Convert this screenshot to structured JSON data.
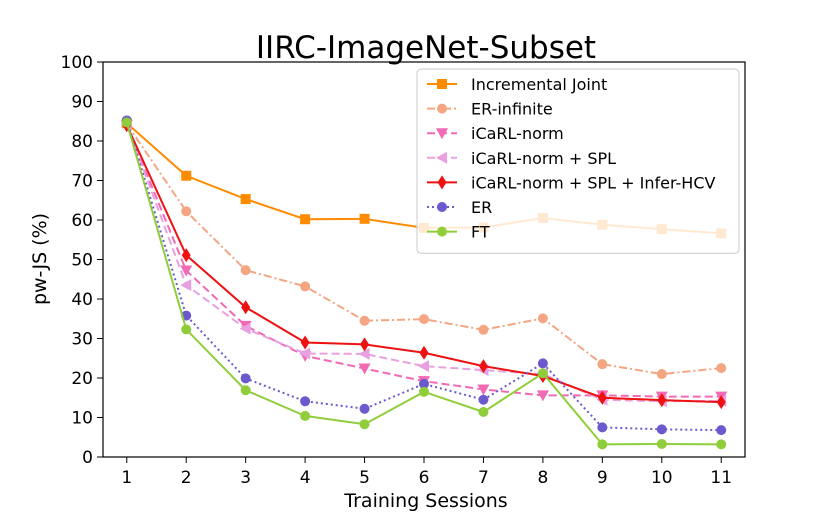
{
  "chart_data": {
    "type": "line",
    "title": "IIRC-ImageNet-Subset",
    "xlabel": "Training Sessions",
    "ylabel": "pw-JS (%)",
    "x": [
      1,
      2,
      3,
      4,
      5,
      6,
      7,
      8,
      9,
      10,
      11
    ],
    "ylim": [
      0,
      100
    ],
    "yticks": [
      0,
      10,
      20,
      30,
      40,
      50,
      60,
      70,
      80,
      90,
      100
    ],
    "grid": false,
    "legend_position": "top-right",
    "series": [
      {
        "name": "Incremental Joint",
        "color": "#ff8c00",
        "dash": "solid",
        "marker": "square",
        "values": [
          84.5,
          71.2,
          65.3,
          60.2,
          60.3,
          58.0,
          58.1,
          60.5,
          58.8,
          57.7,
          56.6
        ]
      },
      {
        "name": "ER-infinite",
        "color": "#f4a582",
        "dash": "dashdot",
        "marker": "circle",
        "values": [
          84.3,
          62.2,
          47.3,
          43.2,
          34.5,
          34.9,
          32.2,
          35.1,
          23.5,
          21.0,
          22.5
        ]
      },
      {
        "name": "iCaRL-norm",
        "color": "#f26ab5",
        "dash": "dashed",
        "marker": "triangle-down",
        "values": [
          84.0,
          47.2,
          33.2,
          25.6,
          22.4,
          19.2,
          17.1,
          15.6,
          15.6,
          15.3,
          15.3
        ]
      },
      {
        "name": "iCaRL-norm + SPL",
        "color": "#e8a0e0",
        "dash": "dashed",
        "marker": "triangle-left",
        "values": [
          84.2,
          43.5,
          32.5,
          26.2,
          26.1,
          23.0,
          22.0,
          21.0,
          14.5,
          14.1,
          14.2
        ]
      },
      {
        "name": "iCaRL-norm + SPL + Infer-HCV",
        "color": "#ee1111",
        "dash": "solid",
        "marker": "diamond",
        "values": [
          84.0,
          51.1,
          37.9,
          29.0,
          28.5,
          26.4,
          23.0,
          20.5,
          15.0,
          14.4,
          13.9
        ]
      },
      {
        "name": "ER",
        "color": "#6a5acd",
        "dash": "dotted",
        "marker": "circle",
        "values": [
          85.2,
          35.8,
          19.9,
          14.1,
          12.2,
          18.5,
          14.5,
          23.7,
          7.5,
          7.0,
          6.8
        ]
      },
      {
        "name": "FT",
        "color": "#8fce3a",
        "dash": "solid",
        "marker": "circle",
        "values": [
          84.7,
          32.3,
          16.9,
          10.4,
          8.3,
          16.5,
          11.4,
          21.2,
          3.2,
          3.3,
          3.2
        ]
      }
    ]
  }
}
